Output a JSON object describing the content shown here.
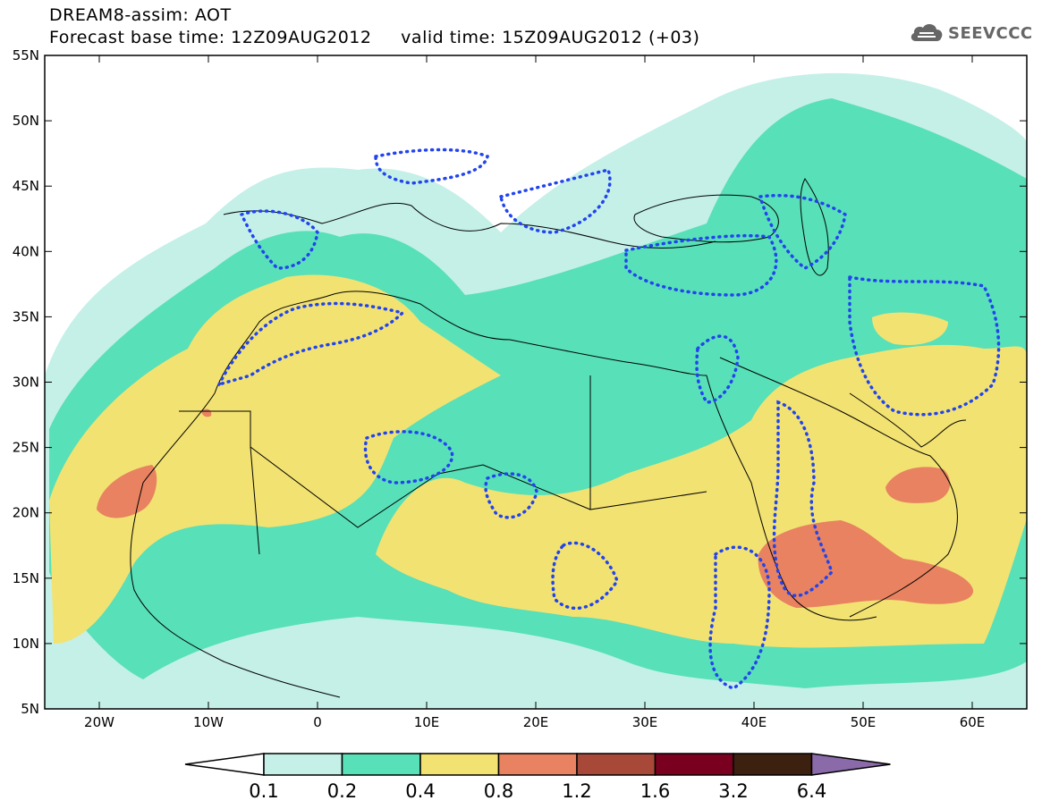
{
  "header": {
    "title_line1": "DREAM8-assim: AOT",
    "title_line2": "Forecast base time: 12Z09AUG2012     valid time: 15Z09AUG2012 (+03)",
    "logo_text": "SEEVCCC"
  },
  "map": {
    "lat_labels": [
      "55N",
      "50N",
      "45N",
      "40N",
      "35N",
      "30N",
      "25N",
      "20N",
      "15N",
      "10N",
      "5N"
    ],
    "lon_labels": [
      "20W",
      "10W",
      "0",
      "10E",
      "20E",
      "30E",
      "40E",
      "50E",
      "60E"
    ],
    "extent": {
      "lon_min": -25,
      "lon_max": 65,
      "lat_min": 5,
      "lat_max": 55
    },
    "contour_style": "dotted blue",
    "contour_color": "#2244ee"
  },
  "colorbar": {
    "labels": [
      "0.1",
      "0.2",
      "0.4",
      "0.8",
      "1.2",
      "1.6",
      "3.2",
      "6.4"
    ],
    "colors": [
      "#ffffff",
      "#c4f0e8",
      "#58e0b8",
      "#f2e272",
      "#e88260",
      "#a84838",
      "#7a0020",
      "#3c2010",
      "#8a6aa8"
    ]
  }
}
